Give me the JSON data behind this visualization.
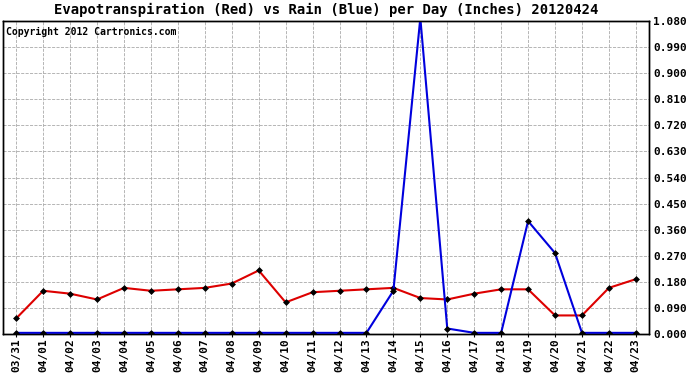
{
  "title": "Evapotranspiration (Red) vs Rain (Blue) per Day (Inches) 20120424",
  "copyright": "Copyright 2012 Cartronics.com",
  "x_labels": [
    "03/31",
    "04/01",
    "04/02",
    "04/03",
    "04/04",
    "04/05",
    "04/06",
    "04/07",
    "04/08",
    "04/09",
    "04/10",
    "04/11",
    "04/12",
    "04/13",
    "04/14",
    "04/15",
    "04/16",
    "04/17",
    "04/18",
    "04/19",
    "04/20",
    "04/21",
    "04/22",
    "04/23"
  ],
  "et_red": [
    0.055,
    0.15,
    0.14,
    0.12,
    0.16,
    0.15,
    0.155,
    0.16,
    0.175,
    0.22,
    0.11,
    0.145,
    0.15,
    0.155,
    0.16,
    0.125,
    0.12,
    0.14,
    0.155,
    0.155,
    0.065,
    0.065,
    0.16,
    0.19
  ],
  "rain_blue": [
    0.005,
    0.005,
    0.005,
    0.005,
    0.005,
    0.005,
    0.005,
    0.005,
    0.005,
    0.005,
    0.005,
    0.005,
    0.005,
    0.005,
    0.15,
    1.09,
    0.02,
    0.005,
    0.005,
    0.39,
    0.28,
    0.005,
    0.005,
    0.005
  ],
  "ylim": [
    0.0,
    1.08
  ],
  "yticks": [
    0.0,
    0.09,
    0.18,
    0.27,
    0.36,
    0.45,
    0.54,
    0.63,
    0.72,
    0.81,
    0.9,
    0.99,
    1.08
  ],
  "red_color": "#dd0000",
  "blue_color": "#0000dd",
  "bg_color": "#ffffff",
  "grid_color": "#aaaaaa",
  "title_fontsize": 10,
  "copyright_fontsize": 7,
  "tick_fontsize": 8,
  "marker": "D",
  "markersize": 3
}
